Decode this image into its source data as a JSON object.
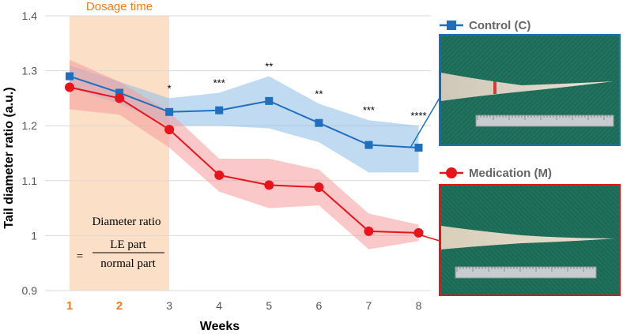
{
  "chart_data": {
    "type": "line",
    "xlabel": "Weeks",
    "ylabel": "Tail diameter ratio (a.u.)",
    "categories": [
      "1",
      "2",
      "3",
      "4",
      "5",
      "6",
      "7",
      "8"
    ],
    "highlighted_categories": [
      "1",
      "2"
    ],
    "yticks": [
      "0.9",
      "1",
      "1.1",
      "1.2",
      "1.3",
      "1.4"
    ],
    "ylim": [
      0.9,
      1.4
    ],
    "grid": true,
    "shaded_region": {
      "label": "Dosage time",
      "x_start": 1,
      "x_end": 3,
      "color": "#fbe0c7"
    },
    "series": [
      {
        "name": "Control (C)",
        "color": "#1f6fbf",
        "band_color": "#8dbde6",
        "marker": "square",
        "values": [
          1.29,
          1.26,
          1.225,
          1.228,
          1.245,
          1.205,
          1.165,
          1.16
        ],
        "upper": [
          1.31,
          1.28,
          1.25,
          1.26,
          1.29,
          1.24,
          1.21,
          1.2
        ],
        "lower": [
          1.27,
          1.24,
          1.2,
          1.2,
          1.195,
          1.17,
          1.115,
          1.115
        ]
      },
      {
        "name": "Medication (M)",
        "color": "#e8141c",
        "band_color": "#f59a9a",
        "marker": "circle",
        "values": [
          1.27,
          1.25,
          1.193,
          1.11,
          1.092,
          1.088,
          1.008,
          1.005
        ],
        "upper": [
          1.32,
          1.28,
          1.225,
          1.14,
          1.14,
          1.12,
          1.04,
          1.02
        ],
        "lower": [
          1.23,
          1.22,
          1.16,
          1.08,
          1.05,
          1.055,
          0.975,
          0.99
        ]
      }
    ],
    "significance": [
      {
        "week": "3",
        "label": "*"
      },
      {
        "week": "4",
        "label": "***"
      },
      {
        "week": "5",
        "label": "**"
      },
      {
        "week": "6",
        "label": "**"
      },
      {
        "week": "7",
        "label": "***"
      },
      {
        "week": "8",
        "label": "****"
      }
    ],
    "formula": {
      "title": "Diameter ratio",
      "equals": "=",
      "numerator": "LE part",
      "denominator": "normal part"
    },
    "legend": [
      {
        "name": "Control (C)",
        "color": "#1f6fbf",
        "frame_color": "#1f6fbf"
      },
      {
        "name": "Medication (M)",
        "color": "#e8141c",
        "frame_color": "#e8141c"
      }
    ]
  }
}
